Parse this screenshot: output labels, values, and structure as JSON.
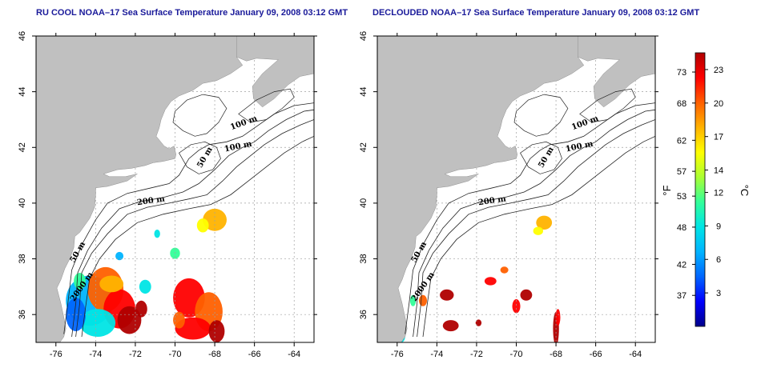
{
  "maps": [
    {
      "title": "RU COOL NOAA–17 Sea Surface Temperature January 09, 2008 03:12 GMT",
      "contour_labels": [
        "100 m",
        "100 m",
        "50 m",
        "200 m",
        "50 m",
        "2000 m"
      ]
    },
    {
      "title": "DECLOUDED NOAA–17 Sea Surface Temperature January 09, 2008 03:12 GMT",
      "contour_labels": [
        "100 m",
        "100 m",
        "50 m",
        "200 m",
        "50 m",
        "2000 m"
      ]
    }
  ],
  "map_extent": {
    "lon_range": [
      -77,
      -63
    ],
    "lat_range": [
      35,
      46
    ]
  },
  "x_ticks": [
    "-76",
    "-74",
    "-72",
    "-70",
    "-68",
    "-66",
    "-64"
  ],
  "x_tick_values": [
    -76,
    -74,
    -72,
    -70,
    -68,
    -66,
    -64
  ],
  "y_ticks": [
    "36",
    "38",
    "40",
    "42",
    "44",
    "46"
  ],
  "y_tick_values": [
    36,
    38,
    40,
    42,
    44,
    46
  ],
  "colorbar": {
    "fahrenheit_ticks": [
      "73",
      "68",
      "62",
      "57",
      "53",
      "48",
      "42",
      "37"
    ],
    "celsius_ticks": [
      "23",
      "20",
      "17",
      "14",
      "12",
      "9",
      "6",
      "3"
    ],
    "fahrenheit_label": "°F",
    "celsius_label": "°C",
    "colors": [
      "#00008b",
      "#0000ff",
      "#0066ff",
      "#00b4ff",
      "#00e5e5",
      "#33ff99",
      "#aaff33",
      "#ffff00",
      "#ffb300",
      "#ff6000",
      "#ff0000",
      "#b00000"
    ]
  },
  "colors": {
    "land": "#c0c0c0",
    "title": "#1a1a9a",
    "grid": "#a0a0a0"
  }
}
